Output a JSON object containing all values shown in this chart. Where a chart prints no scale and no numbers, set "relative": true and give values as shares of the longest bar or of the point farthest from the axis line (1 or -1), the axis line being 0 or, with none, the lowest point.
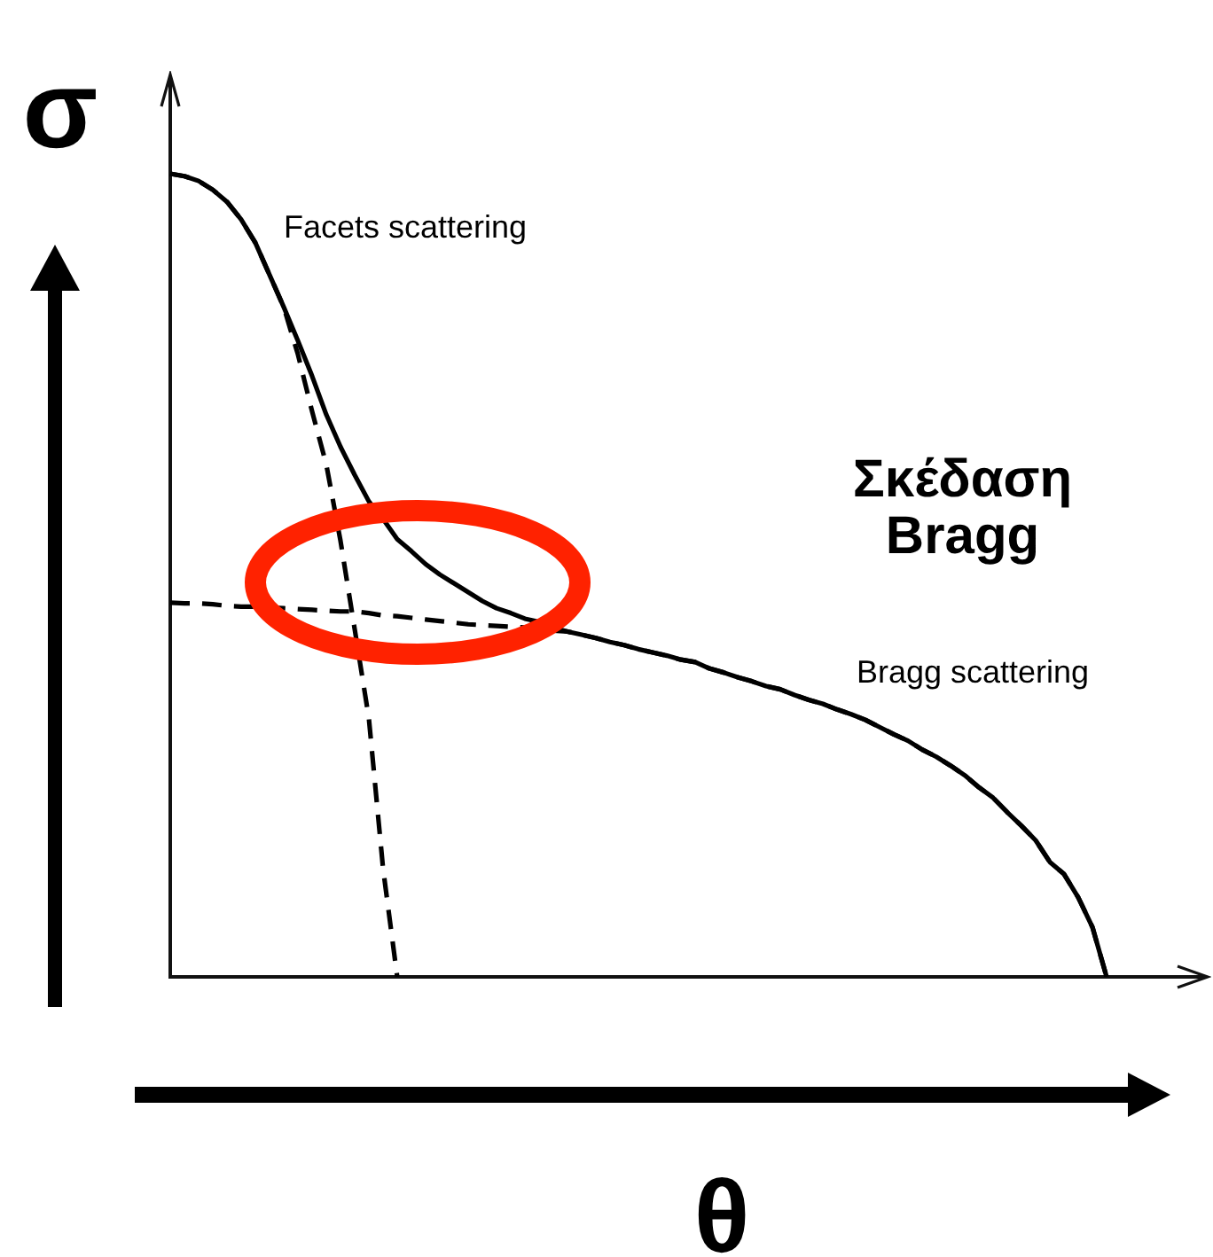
{
  "chart_data": {
    "type": "line",
    "relative": true,
    "xlabel": "θ",
    "ylabel": "σ",
    "annotations": [
      "Σκέδαση Bragg"
    ],
    "categories": [
      null,
      null,
      null,
      null,
      null,
      null,
      null,
      null,
      null,
      null,
      null,
      null,
      null,
      null,
      null,
      null,
      null,
      null,
      null,
      null,
      null,
      null,
      null,
      null,
      null,
      null,
      null,
      null,
      null,
      null,
      null,
      null,
      null,
      null,
      null,
      null,
      null,
      null,
      null,
      null,
      null,
      null,
      null,
      null,
      null,
      null,
      null,
      null,
      null,
      null,
      null,
      null,
      null,
      null,
      null,
      null,
      null,
      null,
      null,
      null,
      null,
      null,
      null,
      null,
      null,
      null,
      null,
      null,
      null,
      null,
      null,
      null,
      null,
      null
    ],
    "series": [
      {
        "color": "#000000",
        "values": [
          1,
          0.997,
          0.991,
          0.98,
          0.965,
          0.943,
          0.914,
          0.874,
          0.834,
          0.792,
          0.748,
          0.7,
          0.66,
          0.625,
          0.592,
          0.57,
          0.545,
          0.53,
          0.514,
          0.501,
          0.49,
          0.479,
          0.468,
          0.459,
          0.453,
          0.446,
          0.442,
          0.435,
          0.43,
          0.426,
          0.422,
          0.417,
          0.413,
          0.408,
          0.404,
          0.4,
          0.395,
          0.392,
          0.384,
          0.379,
          0.373,
          0.368,
          0.362,
          0.358,
          0.351,
          0.345,
          0.34,
          0.333,
          0.327,
          0.32,
          0.311,
          0.302,
          0.294,
          0.283,
          0.274,
          0.263,
          0.251,
          0.236,
          0.223,
          0.205,
          0.188,
          0.17,
          0.143,
          0.128,
          0.099,
          0.062,
          0,
          null,
          null,
          null,
          null,
          null,
          null,
          null
        ]
      },
      {
        "name": "Facets scattering",
        "color": "#000000",
        "line_style": "dashed",
        "values": [
          1,
          0.997,
          0.991,
          0.98,
          0.965,
          0.943,
          0.914,
          0.874,
          0.834,
          0.775,
          0.704,
          0.638,
          0.543,
          0.433,
          0.322,
          0.135,
          0,
          null,
          null,
          null,
          null,
          null,
          null,
          null,
          null,
          null,
          null,
          null,
          null,
          null,
          null,
          null,
          null,
          null,
          null,
          null,
          null,
          null,
          null,
          null,
          null,
          null,
          null,
          null,
          null,
          null,
          null,
          null,
          null,
          null,
          null,
          null,
          null,
          null,
          null,
          null,
          null,
          null,
          null,
          null,
          null,
          null,
          null,
          null,
          null,
          null,
          null,
          null,
          null,
          null,
          null,
          null,
          null,
          null
        ]
      },
      {
        "name": "Bragg scattering",
        "color": "#000000",
        "line_style": "dashed",
        "values": [
          0.466,
          0.465,
          0.465,
          0.464,
          0.462,
          0.461,
          0.461,
          0.46,
          0.459,
          0.458,
          0.457,
          0.456,
          0.455,
          0.455,
          0.453,
          0.45,
          0.449,
          0.447,
          0.445,
          0.443,
          0.441,
          0.439,
          0.438,
          0.437,
          0.436,
          0.435,
          0.434,
          0.431,
          0.43,
          0.426,
          0.422,
          0.417,
          0.413,
          0.408,
          0.404,
          0.4,
          0.395,
          0.392,
          0.384,
          0.379,
          0.373,
          0.368,
          0.362,
          0.358,
          0.351,
          0.345,
          0.34,
          0.333,
          0.327,
          0.32,
          0.311,
          0.302,
          0.294,
          0.283,
          0.274,
          0.263,
          0.251,
          0.236,
          0.223,
          0.205,
          0.188,
          0.17,
          0.143,
          0.128,
          0.099,
          0.062,
          0,
          null,
          null,
          null,
          null,
          null,
          null,
          null
        ]
      }
    ]
  }
}
